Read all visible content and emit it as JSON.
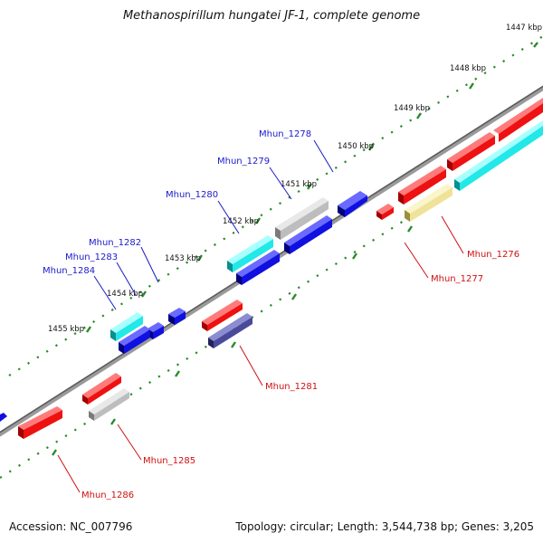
{
  "title": "Methanospirillum hungatei JF-1, complete genome",
  "accession": "Accession: NC_007796",
  "summary": "Topology: circular; Length: 3,544,738 bp; Genes: 3,205",
  "scale_ticks": [
    {
      "label": "1447 kbp"
    },
    {
      "label": "1448 kbp"
    },
    {
      "label": "1449 kbp"
    },
    {
      "label": "1450 kbp"
    },
    {
      "label": "1451 kbp"
    },
    {
      "label": "1452 kbp"
    },
    {
      "label": "1453 kbp"
    },
    {
      "label": "1454 kbp"
    },
    {
      "label": "1455 kbp"
    }
  ],
  "gene_labels_top": [
    "Mhun_1278",
    "Mhun_1279",
    "Mhun_1280",
    "Mhun_1282",
    "Mhun_1283",
    "Mhun_1284"
  ],
  "gene_labels_bottom": [
    "Mhun_1276",
    "Mhun_1277",
    "Mhun_1281",
    "Mhun_1285",
    "Mhun_1286"
  ],
  "colors": {
    "backbone": "#808080",
    "red": "#ee1111",
    "blue": "#1010e0",
    "cyan": "#22e8e8",
    "gray": "#bdbdbd",
    "khaki": "#efe39a",
    "navy": "#4a4a9c",
    "tick": "#2a8a2a",
    "label_top": "#1a1ac8",
    "label_bottom": "#d01010"
  }
}
